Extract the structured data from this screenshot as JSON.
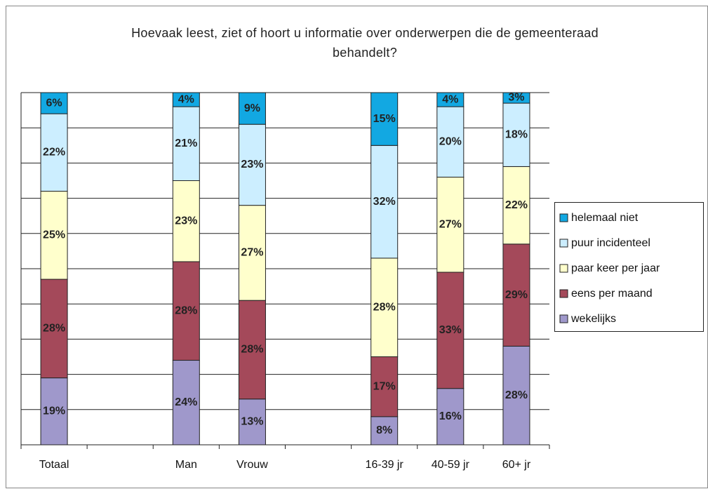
{
  "chart_data": {
    "type": "stacked_bar",
    "title": "Hoevaak leest, ziet of hoort u informatie over onderwerpen die de gemeenteraad behandelt?",
    "categories": [
      "Totaal",
      null,
      "Man",
      "Vrouw",
      null,
      "16-39 jr",
      "40-59 jr",
      "60+ jr"
    ],
    "series": [
      {
        "name": "wekelijks",
        "color": "#9f98cb",
        "values": [
          19,
          null,
          24,
          13,
          null,
          8,
          16,
          28
        ]
      },
      {
        "name": "eens per maand",
        "color": "#a4495a",
        "values": [
          28,
          null,
          28,
          28,
          null,
          17,
          33,
          29
        ]
      },
      {
        "name": "paar keer per jaar",
        "color": "#ffffcc",
        "values": [
          25,
          null,
          23,
          27,
          null,
          28,
          27,
          22
        ]
      },
      {
        "name": "puur incidenteel",
        "color": "#cceeff",
        "values": [
          22,
          null,
          21,
          23,
          null,
          32,
          20,
          18
        ]
      },
      {
        "name": "helemaal niet",
        "color": "#12a8e2",
        "values": [
          6,
          null,
          4,
          9,
          null,
          15,
          4,
          3
        ]
      }
    ],
    "value_labels": [
      [
        "19%",
        null,
        "24%",
        "13%",
        null,
        "8%",
        "16%",
        "28%"
      ],
      [
        "28%",
        null,
        "28%",
        "28%",
        null,
        "17%",
        "33%",
        "29%"
      ],
      [
        "25%",
        null,
        "23%",
        "27%",
        null,
        "28%",
        "27%",
        "22%"
      ],
      [
        "22%",
        null,
        "21%",
        "23%",
        null,
        "32%",
        "20%",
        "18%"
      ],
      [
        "6%",
        null,
        "4%",
        "9%",
        null,
        "15%",
        "4%",
        "3%"
      ]
    ],
    "ylim": [
      0,
      100
    ],
    "yticks": [
      0,
      10,
      20,
      30,
      40,
      50,
      60,
      70,
      80,
      90,
      100
    ],
    "grid": true,
    "legend": "right"
  }
}
